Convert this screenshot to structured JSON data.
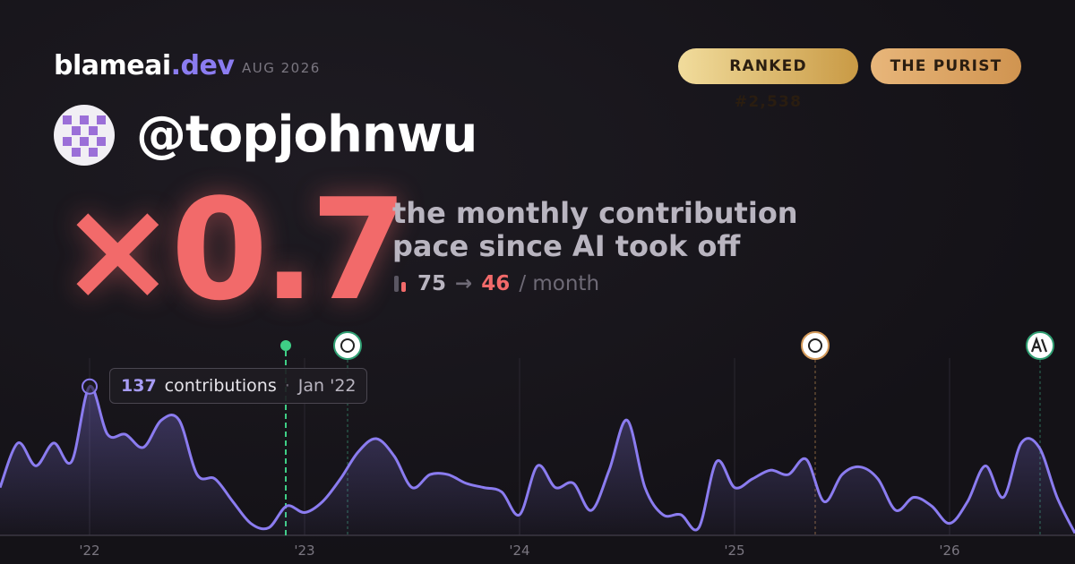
{
  "header": {
    "brand": "blameai",
    "tld": ".dev",
    "period": "AUG 2026",
    "badges": [
      "RANKED #2,538",
      "THE PURIST"
    ],
    "handle": "@topjohnwu"
  },
  "headline": {
    "multiplier": "×0.7",
    "line1": "the monthly contribution",
    "line2": "pace since AI took off"
  },
  "stats": {
    "before": 75,
    "arrow": "→",
    "after": 46,
    "unit": "/ month"
  },
  "tooltip": {
    "label": "contributions",
    "date": "Jan '22",
    "index": 5
  },
  "chart_data": {
    "type": "line",
    "categories": [
      null,
      null,
      null,
      null,
      null,
      "'22",
      null,
      null,
      null,
      null,
      null,
      null,
      null,
      null,
      null,
      null,
      null,
      "'23",
      null,
      null,
      null,
      null,
      null,
      null,
      null,
      null,
      null,
      null,
      null,
      "'24",
      null,
      null,
      null,
      null,
      null,
      null,
      null,
      null,
      null,
      null,
      null,
      "'25",
      null,
      null,
      null,
      null,
      null,
      null,
      null,
      null,
      null,
      null,
      null,
      "'26",
      null,
      null,
      null,
      null,
      null,
      null,
      null
    ],
    "series": [
      {
        "name": "contributions",
        "color": "#8b7cf0",
        "values": [
          44,
          85,
          64,
          85,
          68,
          137,
          93,
          93,
          81,
          106,
          106,
          56,
          52,
          31,
          11,
          7,
          27,
          21,
          31,
          52,
          77,
          89,
          73,
          44,
          56,
          56,
          48,
          44,
          40,
          19,
          64,
          44,
          48,
          23,
          60,
          106,
          44,
          19,
          19,
          7,
          68,
          44,
          52,
          60,
          56,
          70,
          31,
          56,
          63,
          52,
          23,
          35,
          27,
          11,
          31,
          64,
          35,
          85,
          81,
          35,
          2
        ]
      }
    ],
    "ylim": [
      0,
      150
    ],
    "grid": true
  }
}
